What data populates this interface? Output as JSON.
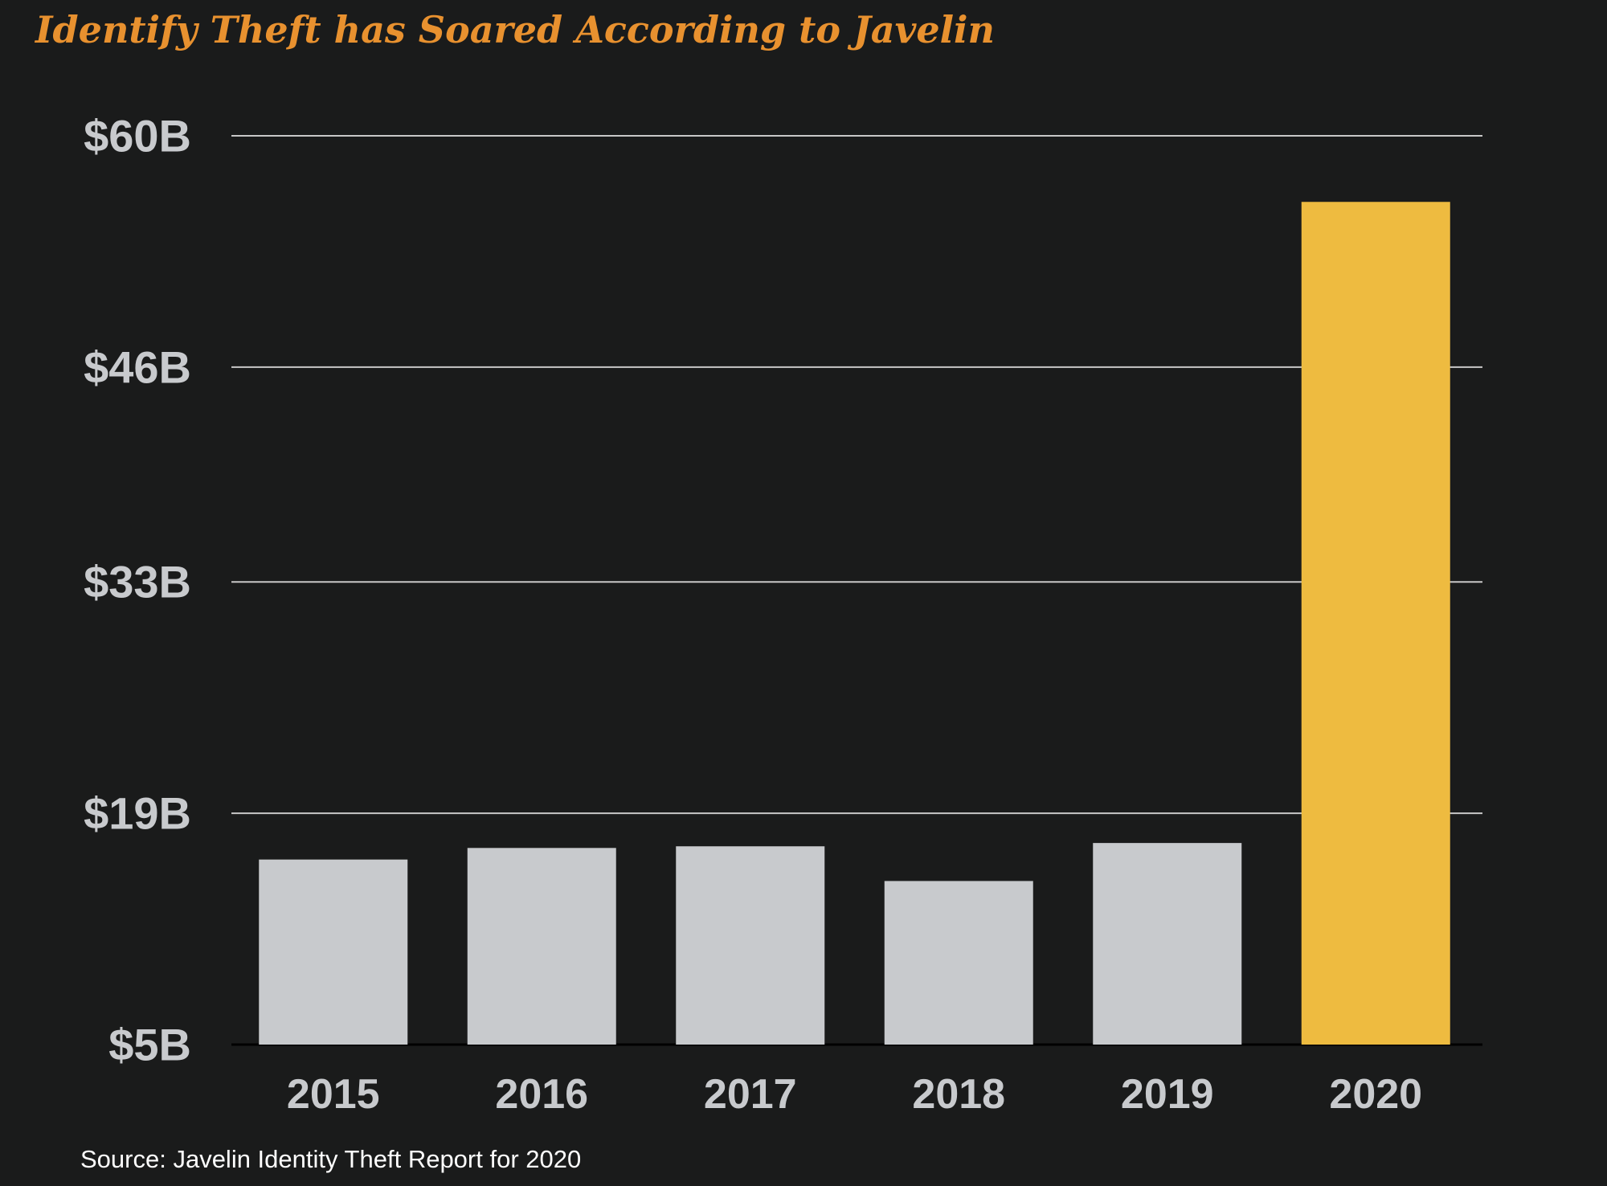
{
  "chart_data": {
    "type": "bar",
    "title": "Identify Theft has Soared According to Javelin",
    "categories": [
      "2015",
      "2016",
      "2017",
      "2018",
      "2019",
      "2020"
    ],
    "values": [
      16.2,
      16.9,
      17.0,
      14.9,
      17.2,
      56.0
    ],
    "yticks": [
      5,
      19,
      33,
      46,
      60
    ],
    "ytick_labels": [
      "$5B",
      "$19B",
      "$33B",
      "$46B",
      "$60B"
    ],
    "ylim": [
      5,
      60
    ],
    "grid": true,
    "bar_color": "#c8cacd",
    "highlight_color": "#eebb40",
    "highlight_category": "2020",
    "gridline_color": "#c8c8c8",
    "background": "#1a1b1b",
    "source": "Source: Javelin Identity Theft Report for 2020"
  }
}
